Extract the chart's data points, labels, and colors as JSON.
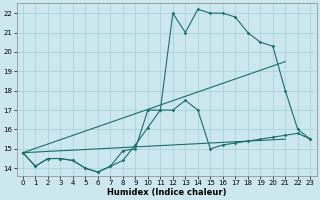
{
  "xlabel": "Humidex (Indice chaleur)",
  "bg_color": "#cce8ee",
  "line_color": "#1a6e6a",
  "grid_color": "#aad4dc",
  "xlim": [
    -0.5,
    23.5
  ],
  "ylim": [
    13.6,
    22.5
  ],
  "xticks": [
    0,
    1,
    2,
    3,
    4,
    5,
    6,
    7,
    8,
    9,
    10,
    11,
    12,
    13,
    14,
    15,
    16,
    17,
    18,
    19,
    20,
    21,
    22,
    23
  ],
  "yticks": [
    14,
    15,
    16,
    17,
    18,
    19,
    20,
    21,
    22
  ],
  "curve1_x": [
    0,
    1,
    2,
    3,
    4,
    5,
    6,
    7,
    8,
    9,
    10,
    11,
    12,
    13,
    14,
    15,
    16,
    17,
    18,
    19,
    20,
    21,
    22,
    23
  ],
  "curve1_y": [
    14.8,
    14.1,
    14.5,
    14.5,
    14.4,
    14.0,
    13.8,
    14.1,
    14.4,
    15.2,
    16.1,
    17.0,
    22.0,
    21.0,
    22.2,
    22.0,
    22.0,
    21.8,
    21.0,
    20.5,
    20.3,
    18.0,
    16.0,
    15.5
  ],
  "curve2_x": [
    0,
    1,
    2,
    3,
    4,
    5,
    6,
    7,
    8,
    9,
    10,
    11,
    12,
    13,
    14,
    15,
    16,
    17,
    18,
    19,
    20,
    21,
    22,
    23
  ],
  "curve2_y": [
    14.8,
    14.1,
    14.5,
    14.5,
    14.4,
    14.0,
    13.8,
    14.1,
    14.9,
    15.0,
    17.0,
    17.0,
    17.0,
    17.5,
    17.0,
    15.0,
    15.2,
    15.3,
    15.4,
    15.5,
    15.6,
    15.7,
    15.8,
    15.5
  ],
  "line3_x": [
    0,
    21
  ],
  "line3_y": [
    14.8,
    19.5
  ],
  "line4_x": [
    0,
    21
  ],
  "line4_y": [
    14.8,
    15.5
  ]
}
